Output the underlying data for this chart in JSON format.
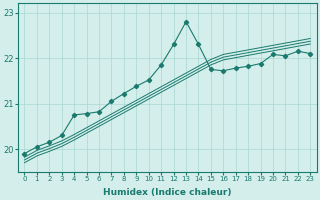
{
  "xlabel": "Humidex (Indice chaleur)",
  "background_color": "#d4eeeb",
  "grid_color": "#a8d8d3",
  "line_color": "#1a7a6e",
  "x_values": [
    0,
    1,
    2,
    3,
    4,
    5,
    6,
    7,
    8,
    9,
    10,
    11,
    12,
    13,
    14,
    15,
    16,
    17,
    18,
    19,
    20,
    21,
    22,
    23
  ],
  "line1": [
    19.9,
    20.05,
    20.15,
    20.3,
    20.75,
    20.78,
    20.82,
    21.05,
    21.22,
    21.38,
    21.52,
    21.85,
    22.3,
    22.8,
    22.3,
    21.75,
    21.72,
    21.78,
    21.82,
    21.88,
    22.08,
    22.05,
    22.15,
    22.1
  ],
  "line2": [
    19.82,
    19.97,
    20.07,
    20.18,
    20.32,
    20.47,
    20.62,
    20.77,
    20.92,
    21.07,
    21.22,
    21.37,
    21.52,
    21.67,
    21.82,
    21.97,
    22.08,
    22.13,
    22.18,
    22.23,
    22.28,
    22.33,
    22.38,
    22.43
  ],
  "line3": [
    19.76,
    19.91,
    20.01,
    20.12,
    20.26,
    20.41,
    20.56,
    20.71,
    20.86,
    21.01,
    21.16,
    21.31,
    21.46,
    21.61,
    21.76,
    21.91,
    22.02,
    22.07,
    22.12,
    22.17,
    22.22,
    22.27,
    22.32,
    22.37
  ],
  "line4": [
    19.7,
    19.85,
    19.95,
    20.06,
    20.2,
    20.35,
    20.5,
    20.65,
    20.8,
    20.95,
    21.1,
    21.25,
    21.4,
    21.55,
    21.7,
    21.85,
    21.96,
    22.01,
    22.06,
    22.11,
    22.16,
    22.21,
    22.26,
    22.31
  ],
  "ylim": [
    19.5,
    23.2
  ],
  "yticks": [
    20,
    21,
    22,
    23
  ],
  "xtick_labels": [
    "0",
    "1",
    "2",
    "3",
    "4",
    "5",
    "6",
    "7",
    "8",
    "9",
    "10",
    "11",
    "12",
    "13",
    "14",
    "15",
    "16",
    "17",
    "18",
    "19",
    "20",
    "21",
    "22",
    "23"
  ]
}
